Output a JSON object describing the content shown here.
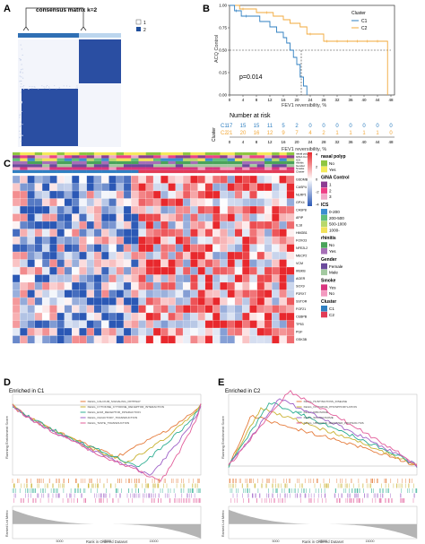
{
  "panel_labels": {
    "a": "A",
    "b": "B",
    "c": "C",
    "d": "D",
    "e": "E"
  },
  "panel_a": {
    "title": "consensus matrix k=2",
    "legend": [
      "1",
      "2"
    ],
    "colors": {
      "cluster1": "#9fc3e6",
      "cluster2": "#1f4e9c",
      "matrix": "#2a4ea2",
      "header_dark": "#2f6fb4",
      "header_light": "#bcd6ee"
    }
  },
  "panel_b": {
    "legend_title": "Cluster",
    "legend_items": [
      "C1",
      "C2"
    ],
    "colors": {
      "C1": "#2f7fc1",
      "C2": "#f2a93b"
    },
    "ylabel": "ACQ Control",
    "xlabel": "FEV1 reversibility, %",
    "xticks": [
      "0",
      "4",
      "8",
      "12",
      "16",
      "20",
      "24",
      "28",
      "32",
      "36",
      "40",
      "44",
      "48"
    ],
    "yticks": [
      "0.00",
      "0.25",
      "0.50",
      "0.75",
      "1.00"
    ],
    "pvalue": "p=0.014",
    "risk_title": "Number at risk",
    "risk_ylabel": "Cluster",
    "risk_xlabel": "FEV1 reversibility, %",
    "risk_rows": [
      {
        "label": "C1",
        "values": [
          "17",
          "15",
          "15",
          "11",
          "5",
          "2",
          "0",
          "0",
          "0",
          "0",
          "0",
          "0",
          "0"
        ]
      },
      {
        "label": "C2",
        "values": [
          "21",
          "20",
          "16",
          "12",
          "9",
          "7",
          "4",
          "2",
          "1",
          "1",
          "1",
          "1",
          "0"
        ]
      }
    ]
  },
  "panel_c": {
    "genes": [
      "GSDMB",
      "CASP4",
      "NLRP1",
      "GPX4",
      "CASP8",
      "APIP",
      "IL18",
      "HMGB1",
      "FOXO3",
      "NFE2L2",
      "MECP2",
      "VCM",
      "IKBKB",
      "AGER",
      "SOX9",
      "P2RX7",
      "SSTOR",
      "FGF21",
      "CEBPB",
      "TP53",
      "PGF",
      "GSK3B"
    ],
    "annot_tracks": [
      "nasal polyp",
      "GINA Control",
      "ICS",
      "rhinitis",
      "Gender",
      "Smoke",
      "Cluster"
    ],
    "colorbar_ticks": [
      "4",
      "2",
      "0",
      "-2",
      "-4"
    ],
    "colors": {
      "high": "#e8282d",
      "mid": "#ffffff",
      "low": "#2b58b5"
    },
    "legend": [
      {
        "title": "nasal polyp",
        "items": [
          {
            "label": "No",
            "color": "#8fc640"
          },
          {
            "label": "Yes",
            "color": "#f4ea5a"
          }
        ]
      },
      {
        "title": "GINA Control",
        "items": [
          {
            "label": "1",
            "color": "#8d3b93"
          },
          {
            "label": "2",
            "color": "#ee3f86"
          },
          {
            "label": "3",
            "color": "#f0a8c8"
          }
        ]
      },
      {
        "title": "ICS",
        "items": [
          {
            "label": "0-200",
            "color": "#3b8ed0"
          },
          {
            "label": "200-500",
            "color": "#5fbf7a"
          },
          {
            "label": "500-1000",
            "color": "#b8d86b"
          },
          {
            "label": "1000-",
            "color": "#f2e25a"
          }
        ]
      },
      {
        "title": "rhinitis",
        "items": [
          {
            "label": "No",
            "color": "#4aa35a"
          },
          {
            "label": "Yes",
            "color": "#a66fb7"
          }
        ]
      },
      {
        "title": "Gender",
        "items": [
          {
            "label": "Female",
            "color": "#6a4a9c"
          },
          {
            "label": "Male",
            "color": "#a3c9a0"
          }
        ]
      },
      {
        "title": "Smoke",
        "items": [
          {
            "label": "Yes",
            "color": "#d9367f"
          },
          {
            "label": "No",
            "color": "#f39ac0"
          }
        ]
      },
      {
        "title": "Cluster",
        "items": [
          {
            "label": "C1",
            "color": "#2f7fc1"
          },
          {
            "label": "C2",
            "color": "#e23b56"
          }
        ]
      }
    ]
  },
  "panel_d": {
    "title": "Enriched in C1",
    "ylabel_top": "Running Enrichment Score",
    "ylabel_bottom": "Ranked List Metric",
    "xlabel": "Rank in Ordered Dataset",
    "xticks": [
      "5000",
      "10000",
      "15000"
    ],
    "pathways": [
      {
        "name": "KEGG_CALCIUM_SIGNALING_PATHWAY",
        "color": "#e57b3b"
      },
      {
        "name": "KEGG_CYTOKINE_CYTOKINE_RECEPTOR_INTERACTION",
        "color": "#c9b232"
      },
      {
        "name": "KEGG_ECM_RECEPTOR_INTERACTION",
        "color": "#2fae93"
      },
      {
        "name": "KEGG_OLFACTORY_TRANSDUCTION",
        "color": "#9e61c7"
      },
      {
        "name": "KEGG_TASTE_TRANSDUCTION",
        "color": "#e25d9a"
      }
    ]
  },
  "panel_e": {
    "title": "Enriched in C2",
    "ylabel_top": "Running Enrichment Score",
    "ylabel_bottom": "Ranked List Metric",
    "xlabel": "Rank in Ordered Dataset",
    "xticks": [
      "5000",
      "10000",
      "15000"
    ],
    "pathways": [
      {
        "name": "KEGG_HUNTINGTONS_DISEASE",
        "color": "#e57b3b"
      },
      {
        "name": "KEGG_OXIDATIVE_PHOSPHORYLATION",
        "color": "#c9b232"
      },
      {
        "name": "KEGG_RIBOSOME",
        "color": "#2fae93"
      },
      {
        "name": "KEGG_SPLICEOSOME",
        "color": "#9e61c7"
      },
      {
        "name": "KEGG_UBIQUITIN_MEDIATED_PROTEOLYSIS",
        "color": "#e25d9a"
      }
    ]
  }
}
